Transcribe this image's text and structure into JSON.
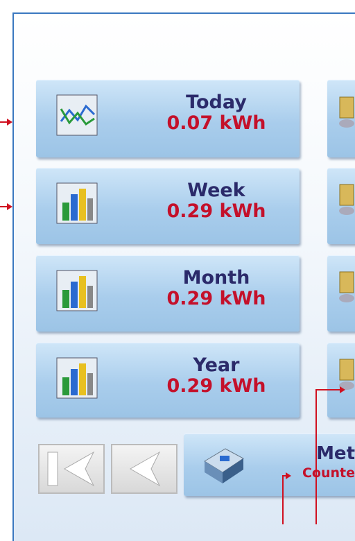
{
  "buttons": [
    {
      "label": "Today",
      "value": "0.07 kWh"
    },
    {
      "label": "Week",
      "value": "0.29 kWh"
    },
    {
      "label": "Month",
      "value": "0.29 kWh"
    },
    {
      "label": "Year",
      "value": "0.29 kWh"
    }
  ],
  "meter": {
    "label": "Met",
    "sublabel": "Counte"
  }
}
